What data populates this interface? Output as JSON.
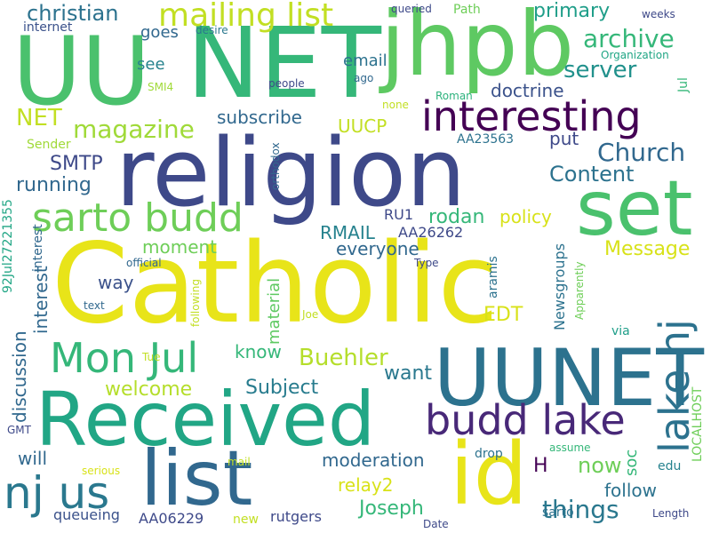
{
  "colors": {
    "background": "#ffffff",
    "palette": [
      "#fde725",
      "#b5de2b",
      "#6ece58",
      "#35b779",
      "#1f9e89",
      "#26828e",
      "#31688e",
      "#3e4989",
      "#482878",
      "#440154"
    ]
  },
  "words": [
    {
      "text": "Catholic",
      "color": "#e8e419"
    },
    {
      "text": "religion",
      "color": "#3e4989"
    },
    {
      "text": "UU",
      "color": "#4ac16d"
    },
    {
      "text": "NET",
      "color": "#35b779"
    },
    {
      "text": "jhpb",
      "color": "#5ec962"
    },
    {
      "text": "set",
      "color": "#4ac16d"
    },
    {
      "text": "Received",
      "color": "#21a685"
    },
    {
      "text": "UUNET",
      "color": "#2c728e"
    },
    {
      "text": "list",
      "color": "#31688e"
    },
    {
      "text": "id",
      "color": "#e8e419"
    },
    {
      "text": "interesting",
      "color": "#440154"
    },
    {
      "text": "sarto budd",
      "color": "#6ece58"
    },
    {
      "text": "budd lake",
      "color": "#482878"
    },
    {
      "text": "nj us",
      "color": "#2a788e"
    },
    {
      "text": "Mon Jul",
      "color": "#35b779"
    },
    {
      "text": "lake nj",
      "color": "#2c728e"
    },
    {
      "text": "mailing list",
      "color": "#c2df23"
    },
    {
      "text": "christian",
      "color": "#2c728e"
    },
    {
      "text": "magazine",
      "color": "#a0da39"
    },
    {
      "text": "archive",
      "color": "#35b779"
    },
    {
      "text": "server",
      "color": "#21918c"
    },
    {
      "text": "Church",
      "color": "#31688e"
    },
    {
      "text": "Content",
      "color": "#2c728e"
    },
    {
      "text": "primary",
      "color": "#1f9e89"
    },
    {
      "text": "NET",
      "color": "#c2df23"
    },
    {
      "text": "Buehler",
      "color": "#b5de2b"
    },
    {
      "text": "things",
      "color": "#2a788e"
    },
    {
      "text": "Message",
      "color": "#d8e219"
    },
    {
      "text": "SMTP",
      "color": "#3e4989"
    },
    {
      "text": "running",
      "color": "#31688e"
    },
    {
      "text": "Subject",
      "color": "#287c8e"
    },
    {
      "text": "doctrine",
      "color": "#3b528b"
    },
    {
      "text": "email",
      "color": "#2c728e"
    },
    {
      "text": "UUCP",
      "color": "#c2df23"
    },
    {
      "text": "subscribe",
      "color": "#31688e"
    },
    {
      "text": "moment",
      "color": "#6ece58"
    },
    {
      "text": "RMAIL",
      "color": "#26828e"
    },
    {
      "text": "rodan",
      "color": "#35b779"
    },
    {
      "text": "policy",
      "color": "#d8e219"
    },
    {
      "text": "everyone",
      "color": "#31688e"
    },
    {
      "text": "welcome",
      "color": "#b5de2b"
    },
    {
      "text": "EDT",
      "color": "#d8e219"
    },
    {
      "text": "know",
      "color": "#35b779"
    },
    {
      "text": "want",
      "color": "#2a788e"
    },
    {
      "text": "follow",
      "color": "#2c728e"
    },
    {
      "text": "now",
      "color": "#6ece58"
    },
    {
      "text": "moderation",
      "color": "#31688e"
    },
    {
      "text": "relay2",
      "color": "#d8e219"
    },
    {
      "text": "Joseph",
      "color": "#35b779"
    },
    {
      "text": "will",
      "color": "#31688e"
    },
    {
      "text": "way",
      "color": "#3b528b"
    },
    {
      "text": "goes",
      "color": "#31688e"
    },
    {
      "text": "see",
      "color": "#26828e"
    },
    {
      "text": "put",
      "color": "#3e4989"
    },
    {
      "text": "queueing",
      "color": "#3b528b"
    },
    {
      "text": "rutgers",
      "color": "#3e4989"
    },
    {
      "text": "AA06229",
      "color": "#3e4989"
    },
    {
      "text": "AA26262",
      "color": "#3e4989"
    },
    {
      "text": "AA23563",
      "color": "#2c728e"
    },
    {
      "text": "RU1",
      "color": "#3e4989"
    },
    {
      "text": "H",
      "color": "#440154"
    },
    {
      "text": "Path",
      "color": "#6ece58"
    },
    {
      "text": "desire",
      "color": "#2a788e"
    },
    {
      "text": "queried",
      "color": "#3e4989"
    },
    {
      "text": "weeks",
      "color": "#3e4989"
    },
    {
      "text": "internet",
      "color": "#3b528b"
    },
    {
      "text": "Organization",
      "color": "#21a685"
    },
    {
      "text": "SMI4",
      "color": "#a0da39"
    },
    {
      "text": "people",
      "color": "#3e4989"
    },
    {
      "text": "ago",
      "color": "#31688e"
    },
    {
      "text": "Roman",
      "color": "#2db27d"
    },
    {
      "text": "none",
      "color": "#c2df23"
    },
    {
      "text": "Sender",
      "color": "#a0da39"
    },
    {
      "text": "official",
      "color": "#31688e"
    },
    {
      "text": "text",
      "color": "#31688e"
    },
    {
      "text": "Joe",
      "color": "#c2df23"
    },
    {
      "text": "Type",
      "color": "#3e4989"
    },
    {
      "text": "Tue",
      "color": "#c2df23"
    },
    {
      "text": "via",
      "color": "#1f9e89"
    },
    {
      "text": "GMT",
      "color": "#3e4989"
    },
    {
      "text": "mail",
      "color": "#c2df23"
    },
    {
      "text": "serious",
      "color": "#d8e219"
    },
    {
      "text": "new",
      "color": "#c2df23"
    },
    {
      "text": "Date",
      "color": "#3e4989"
    },
    {
      "text": "drop",
      "color": "#2c728e"
    },
    {
      "text": "assume",
      "color": "#35b779"
    },
    {
      "text": "sarto",
      "color": "#2c728e"
    },
    {
      "text": "edu",
      "color": "#26828e"
    },
    {
      "text": "Length",
      "color": "#3e4989"
    },
    {
      "text": "92Jul27221355",
      "color": "#21a685"
    },
    {
      "text": "discussion",
      "color": "#31688e"
    },
    {
      "text": "interest",
      "color": "#31688e"
    },
    {
      "text": "interest",
      "color": "#31688e"
    },
    {
      "text": "material",
      "color": "#5ec962"
    },
    {
      "text": "following",
      "color": "#c2df23"
    },
    {
      "text": "orthodox",
      "color": "#31688e"
    },
    {
      "text": "aramis",
      "color": "#2c728e"
    },
    {
      "text": "Newsgroups",
      "color": "#2c728e"
    },
    {
      "text": "Apparently",
      "color": "#6ece58"
    },
    {
      "text": "soc",
      "color": "#35b779"
    },
    {
      "text": "LOCALHOST",
      "color": "#6ece58"
    },
    {
      "text": "Jul",
      "color": "#35b779"
    }
  ]
}
